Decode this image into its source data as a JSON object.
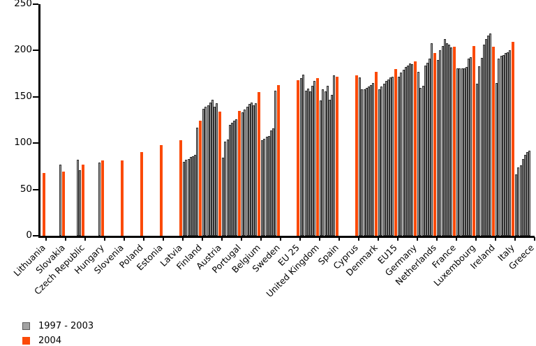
{
  "chart_data": {
    "type": "bar",
    "title": "",
    "xlabel": "",
    "ylabel": "",
    "ylim": [
      0,
      250
    ],
    "yticks": [
      0,
      50,
      100,
      150,
      200,
      250
    ],
    "grid": false,
    "legend_position": "bottom-left",
    "categories": [
      "Lithuania",
      "Slovakia",
      "Czech Republic",
      "Hungary",
      "Slovenia",
      "Poland",
      "Estonia",
      "Latvia",
      "Finland",
      "Austria",
      "Portugal",
      "Belgium",
      "Sweden",
      "EU 25",
      "United Kingdom",
      "Spain",
      "Cyprus",
      "Denmark",
      "EU15",
      "Germany",
      "Netherlands",
      "France",
      "Luxembourg",
      "Ireland",
      "Italy",
      "Greece"
    ],
    "series": [
      {
        "name": "1997 - 2003",
        "color": "#acacac",
        "note": "up to seven yearly bars per country, right-aligned before 2004",
        "values_by_category": [
          [],
          [
            77
          ],
          [
            82,
            71
          ],
          [
            79
          ],
          [],
          [],
          [],
          [],
          [
            80,
            82,
            83,
            85,
            86,
            87,
            117
          ],
          [
            137,
            139,
            141,
            144,
            147,
            139,
            143
          ],
          [
            84,
            102,
            104,
            120,
            122,
            124,
            126
          ],
          [
            133,
            136,
            139,
            142,
            144,
            141,
            143
          ],
          [
            103,
            105,
            107,
            108,
            114,
            116,
            157
          ],
          [],
          [
            170,
            174,
            157,
            159,
            156,
            162,
            167
          ],
          [
            146,
            158,
            156,
            162,
            147,
            152,
            173
          ],
          [],
          [
            171,
            158,
            158,
            160,
            161,
            163,
            165
          ],
          [
            158,
            161,
            164,
            167,
            169,
            171,
            172
          ],
          [
            172,
            176,
            179,
            182,
            184,
            186,
            185
          ],
          [
            177,
            160,
            162,
            184,
            187,
            191,
            208
          ],
          [
            190,
            200,
            205,
            212,
            208,
            206,
            203
          ],
          [
            181,
            181,
            181,
            181,
            182,
            191,
            193
          ],
          [
            164,
            183,
            192,
            206,
            212,
            216,
            218
          ],
          [
            165,
            191,
            194,
            195,
            197,
            198,
            200
          ],
          [
            66,
            74,
            76,
            83,
            87,
            90,
            92
          ]
        ]
      },
      {
        "name": "2004",
        "color": "#fb4a08",
        "values": [
          68,
          69,
          77,
          81,
          81,
          90,
          98,
          103,
          124,
          134,
          135,
          155,
          163,
          168,
          170,
          172,
          173,
          177,
          180,
          188,
          197,
          204,
          205,
          204,
          209,
          null
        ]
      }
    ]
  }
}
